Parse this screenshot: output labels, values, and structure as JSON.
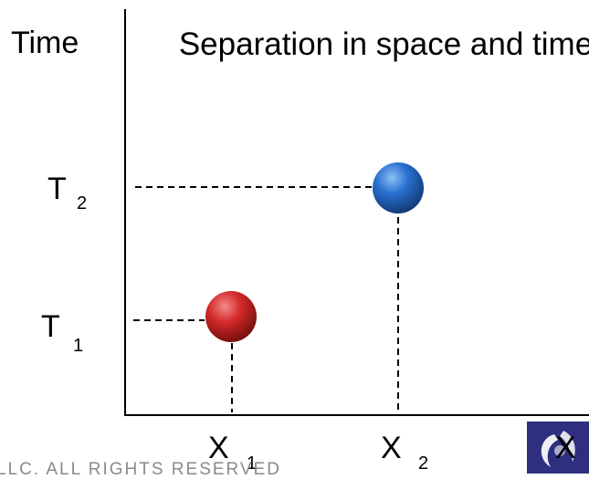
{
  "diagram": {
    "y_axis_label": "Time",
    "title": "Separation in space and time",
    "y_ticks": [
      {
        "main": "T",
        "sub": "2"
      },
      {
        "main": "T",
        "sub": "1"
      }
    ],
    "x_ticks": [
      {
        "main": "X",
        "sub": "1"
      },
      {
        "main": "X",
        "sub": "2"
      },
      {
        "main": "X",
        "sub": ""
      }
    ],
    "events": [
      {
        "name": "event-1",
        "color": "#d42a2a",
        "x": "X 1",
        "t": "T 1"
      },
      {
        "name": "event-2",
        "color": "#2a6fd0",
        "x": "X 2",
        "t": "T 2"
      }
    ]
  },
  "footer": {
    "text": "LLC. ALL RIGHTS RESERVED"
  },
  "colors": {
    "axis": "#000000",
    "guide": "#000000",
    "footer": "#8a8a8a",
    "logo_bg": "#2f2f7f"
  }
}
